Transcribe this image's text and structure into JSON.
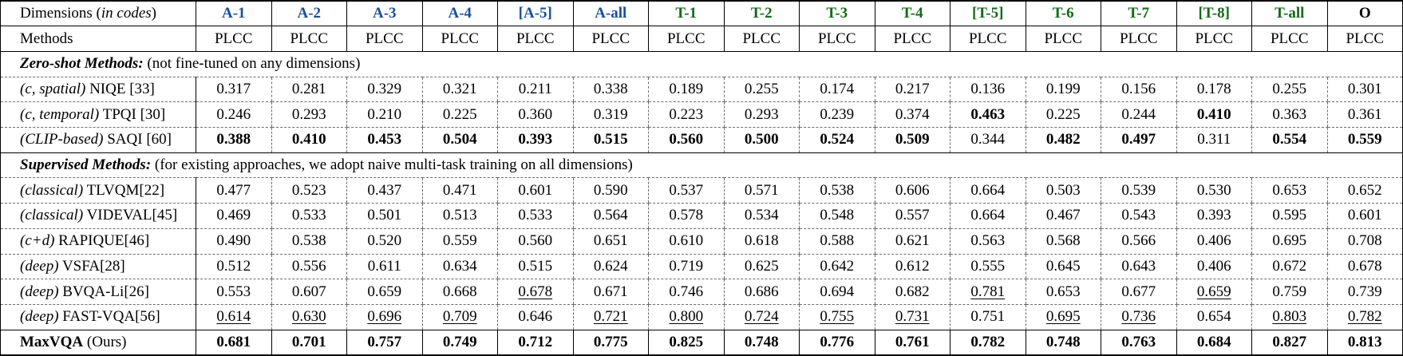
{
  "accent_colors": {
    "a_group": "#1c4f9c",
    "t_group": "#15691a",
    "o_group": "#000000"
  },
  "table": {
    "corner": {
      "pre": "Dimensions (",
      "italic": "in codes",
      "post": ")"
    },
    "methods_label": "Methods",
    "metric_label": "PLCC",
    "columns": [
      {
        "label": "A-1",
        "group": "a"
      },
      {
        "label": "A-2",
        "group": "a"
      },
      {
        "label": "A-3",
        "group": "a"
      },
      {
        "label": "A-4",
        "group": "a"
      },
      {
        "label": "[A-5]",
        "group": "a"
      },
      {
        "label": "A-all",
        "group": "a"
      },
      {
        "label": "T-1",
        "group": "t"
      },
      {
        "label": "T-2",
        "group": "t"
      },
      {
        "label": "T-3",
        "group": "t"
      },
      {
        "label": "T-4",
        "group": "t"
      },
      {
        "label": "[T-5]",
        "group": "t"
      },
      {
        "label": "T-6",
        "group": "t"
      },
      {
        "label": "T-7",
        "group": "t"
      },
      {
        "label": "[T-8]",
        "group": "t"
      },
      {
        "label": "T-all",
        "group": "t"
      },
      {
        "label": "O",
        "group": "o"
      }
    ],
    "sections": [
      {
        "title_bold": "Zero-shot Methods:",
        "title_note": " (not fine-tuned on any dimensions)",
        "rows": [
          {
            "prefix": "(c, spatial)",
            "name": " NIQE [33]",
            "values": [
              "0.317",
              "0.281",
              "0.329",
              "0.321",
              "0.211",
              "0.338",
              "0.189",
              "0.255",
              "0.174",
              "0.217",
              "0.136",
              "0.199",
              "0.156",
              "0.178",
              "0.255",
              "0.301"
            ],
            "styles": [
              "",
              "",
              "",
              "",
              "",
              "",
              "",
              "",
              "",
              "",
              "",
              "",
              "",
              "",
              "",
              ""
            ]
          },
          {
            "prefix": "(c, temporal)",
            "name": " TPQI [30]",
            "values": [
              "0.246",
              "0.293",
              "0.210",
              "0.225",
              "0.360",
              "0.319",
              "0.223",
              "0.293",
              "0.239",
              "0.374",
              "0.463",
              "0.225",
              "0.244",
              "0.410",
              "0.363",
              "0.361"
            ],
            "styles": [
              "",
              "",
              "",
              "",
              "",
              "",
              "",
              "",
              "",
              "",
              "b",
              "",
              "",
              "b",
              "",
              ""
            ]
          },
          {
            "prefix": "(CLIP-based)",
            "name": " SAQI [60]",
            "values": [
              "0.388",
              "0.410",
              "0.453",
              "0.504",
              "0.393",
              "0.515",
              "0.560",
              "0.500",
              "0.524",
              "0.509",
              "0.344",
              "0.482",
              "0.497",
              "0.311",
              "0.554",
              "0.559"
            ],
            "styles": [
              "b",
              "b",
              "b",
              "b",
              "b",
              "b",
              "b",
              "b",
              "b",
              "b",
              "",
              "b",
              "b",
              "",
              "b",
              "b"
            ]
          }
        ]
      },
      {
        "title_bold": "Supervised Methods:",
        "title_note": " (for existing approaches, we adopt naive multi-task training on all dimensions)",
        "rows": [
          {
            "prefix": "(classical)",
            "name": " TLVQM[22]",
            "values": [
              "0.477",
              "0.523",
              "0.437",
              "0.471",
              "0.601",
              "0.590",
              "0.537",
              "0.571",
              "0.538",
              "0.606",
              "0.664",
              "0.503",
              "0.539",
              "0.530",
              "0.653",
              "0.652"
            ],
            "styles": [
              "",
              "",
              "",
              "",
              "",
              "",
              "",
              "",
              "",
              "",
              "",
              "",
              "",
              "",
              "",
              ""
            ]
          },
          {
            "prefix": "(classical)",
            "name": " VIDEVAL[45]",
            "values": [
              "0.469",
              "0.533",
              "0.501",
              "0.513",
              "0.533",
              "0.564",
              "0.578",
              "0.534",
              "0.548",
              "0.557",
              "0.664",
              "0.467",
              "0.543",
              "0.393",
              "0.595",
              "0.601"
            ],
            "styles": [
              "",
              "",
              "",
              "",
              "",
              "",
              "",
              "",
              "",
              "",
              "",
              "",
              "",
              "",
              "",
              ""
            ]
          },
          {
            "prefix": "(c+d)",
            "name": " RAPIQUE[46]",
            "values": [
              "0.490",
              "0.538",
              "0.520",
              "0.559",
              "0.560",
              "0.651",
              "0.610",
              "0.618",
              "0.588",
              "0.621",
              "0.563",
              "0.568",
              "0.566",
              "0.406",
              "0.695",
              "0.708"
            ],
            "styles": [
              "",
              "",
              "",
              "",
              "",
              "",
              "",
              "",
              "",
              "",
              "",
              "",
              "",
              "",
              "",
              ""
            ]
          },
          {
            "prefix": "(deep)",
            "name": " VSFA[28]",
            "values": [
              "0.512",
              "0.556",
              "0.611",
              "0.634",
              "0.515",
              "0.624",
              "0.719",
              "0.625",
              "0.642",
              "0.612",
              "0.555",
              "0.645",
              "0.643",
              "0.406",
              "0.672",
              "0.678"
            ],
            "styles": [
              "",
              "",
              "",
              "",
              "",
              "",
              "",
              "",
              "",
              "",
              "",
              "",
              "",
              "",
              "",
              ""
            ]
          },
          {
            "prefix": "(deep)",
            "name": " BVQA-Li[26]",
            "values": [
              "0.553",
              "0.607",
              "0.659",
              "0.668",
              "0.678",
              "0.671",
              "0.746",
              "0.686",
              "0.694",
              "0.682",
              "0.781",
              "0.653",
              "0.677",
              "0.659",
              "0.759",
              "0.739"
            ],
            "styles": [
              "",
              "",
              "",
              "",
              "u",
              "",
              "",
              "",
              "",
              "",
              "u",
              "",
              "",
              "u",
              "",
              ""
            ]
          },
          {
            "prefix": "(deep)",
            "name": " FAST-VQA[56]",
            "values": [
              "0.614",
              "0.630",
              "0.696",
              "0.709",
              "0.646",
              "0.721",
              "0.800",
              "0.724",
              "0.755",
              "0.731",
              "0.751",
              "0.695",
              "0.736",
              "0.654",
              "0.803",
              "0.782"
            ],
            "styles": [
              "u",
              "u",
              "u",
              "u",
              "",
              "u",
              "u",
              "u",
              "u",
              "u",
              "",
              "u",
              "u",
              "",
              "u",
              "u"
            ]
          }
        ]
      }
    ],
    "final_row": {
      "name_bold": "MaxVQA",
      "name_rest": " (Ours)",
      "values": [
        "0.681",
        "0.701",
        "0.757",
        "0.749",
        "0.712",
        "0.775",
        "0.825",
        "0.748",
        "0.776",
        "0.761",
        "0.782",
        "0.748",
        "0.763",
        "0.684",
        "0.827",
        "0.813"
      ],
      "styles": [
        "b",
        "b",
        "b",
        "b",
        "b",
        "b",
        "b",
        "b",
        "b",
        "b",
        "b",
        "b",
        "b",
        "b",
        "b",
        "b"
      ]
    }
  }
}
